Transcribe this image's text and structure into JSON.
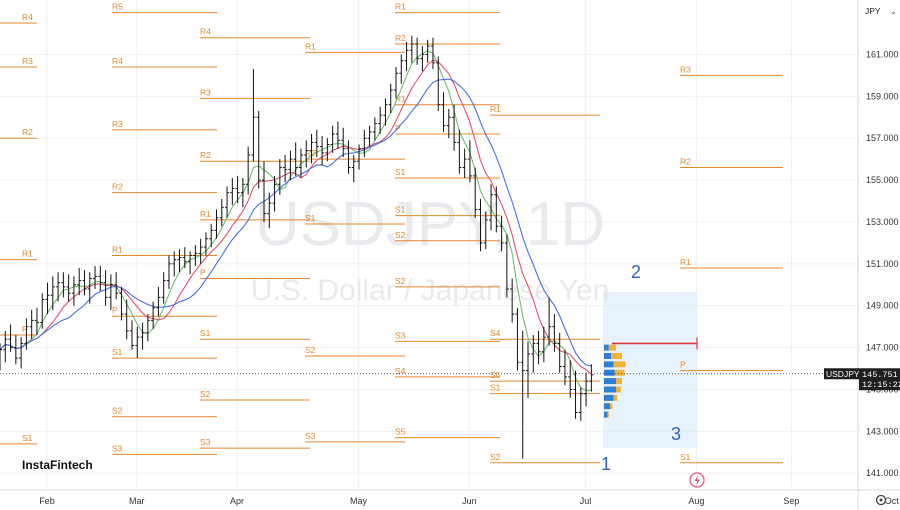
{
  "chart_data": {
    "type": "candlestick",
    "symbol": "USDJPY",
    "watermark_title": "USDJPY, 1D",
    "watermark_subtitle": "U.S. Dollar / Japanese Yen",
    "currency_selector": "JPY",
    "branding": "InstaFintech",
    "x_tick_labels": [
      "Feb",
      "Mar",
      "Apr",
      "May",
      "Jun",
      "Jul",
      "Aug",
      "Sep",
      "Oct"
    ],
    "y_ticks": [
      "161.000",
      "159.000",
      "157.000",
      "155.000",
      "153.000",
      "151.000",
      "149.000",
      "147.000",
      "145.000",
      "143.000",
      "141.000"
    ],
    "ylim": [
      140.2,
      163.6
    ],
    "current_price": "145.751",
    "countdown": "12:15:22",
    "colors": {
      "bars": "#111111",
      "pivot_levels": "#e0882a",
      "ma_fast": "#6bbf6b",
      "ma_mid": "#e0506e",
      "ma_slow": "#4a6fe0",
      "horizontal_line": "#d93a3a",
      "wave_labels": "#2f62c8",
      "volume_profile_buy": "#2f7fd6",
      "volume_profile_sell": "#f0b33a",
      "selection_box": "#d6e8fa"
    },
    "pivot_levels": [
      {
        "label": "R4",
        "price": 162.5,
        "period": 0
      },
      {
        "label": "R3",
        "price": 160.4,
        "period": 0
      },
      {
        "label": "R2",
        "price": 157.0,
        "period": 0
      },
      {
        "label": "R1",
        "price": 151.2,
        "period": 0
      },
      {
        "label": "P",
        "price": 147.6,
        "period": 0
      },
      {
        "label": "S1",
        "price": 142.4,
        "period": 0
      },
      {
        "label": "R5",
        "price": 163.0,
        "period": 1
      },
      {
        "label": "R4",
        "price": 160.4,
        "period": 1
      },
      {
        "label": "R3",
        "price": 157.4,
        "period": 1
      },
      {
        "label": "R2",
        "price": 154.4,
        "period": 1
      },
      {
        "label": "R1",
        "price": 151.4,
        "period": 1
      },
      {
        "label": "P",
        "price": 148.5,
        "period": 1
      },
      {
        "label": "S1",
        "price": 146.5,
        "period": 1
      },
      {
        "label": "S2",
        "price": 143.7,
        "period": 1
      },
      {
        "label": "S3",
        "price": 141.9,
        "period": 1
      },
      {
        "label": "R4",
        "price": 161.8,
        "period": 2
      },
      {
        "label": "R3",
        "price": 158.9,
        "period": 2
      },
      {
        "label": "R2",
        "price": 155.9,
        "period": 2
      },
      {
        "label": "R1",
        "price": 153.1,
        "period": 2
      },
      {
        "label": "P",
        "price": 150.3,
        "period": 2
      },
      {
        "label": "S1",
        "price": 147.4,
        "period": 2
      },
      {
        "label": "S2",
        "price": 144.5,
        "period": 2
      },
      {
        "label": "S3",
        "price": 142.2,
        "period": 2
      },
      {
        "label": "R1",
        "price": 161.1,
        "period": 3
      },
      {
        "label": "R2",
        "price": 156.0,
        "period": 3
      },
      {
        "label": "S1",
        "price": 152.9,
        "period": 3
      },
      {
        "label": "S2",
        "price": 146.6,
        "period": 3
      },
      {
        "label": "S3",
        "price": 142.5,
        "period": 3
      },
      {
        "label": "R1",
        "price": 163.0,
        "period": 4
      },
      {
        "label": "R2",
        "price": 161.5,
        "period": 4
      },
      {
        "label": "R1",
        "price": 158.6,
        "period": 4
      },
      {
        "label": "P",
        "price": 157.2,
        "period": 4
      },
      {
        "label": "S1",
        "price": 155.1,
        "period": 4
      },
      {
        "label": "S1",
        "price": 153.3,
        "period": 4
      },
      {
        "label": "S2",
        "price": 152.1,
        "period": 4
      },
      {
        "label": "S2",
        "price": 149.9,
        "period": 4
      },
      {
        "label": "S3",
        "price": 147.3,
        "period": 4
      },
      {
        "label": "S4",
        "price": 145.6,
        "period": 4
      },
      {
        "label": "S5",
        "price": 142.7,
        "period": 4
      },
      {
        "label": "R1",
        "price": 158.1,
        "period": 5
      },
      {
        "label": "S4",
        "price": 147.4,
        "period": 5
      },
      {
        "label": "S5",
        "price": 145.4,
        "period": 5
      },
      {
        "label": "S1",
        "price": 144.8,
        "period": 5
      },
      {
        "label": "S2",
        "price": 141.5,
        "period": 5
      },
      {
        "label": "R3",
        "price": 160.0,
        "period": 6
      },
      {
        "label": "R2",
        "price": 155.6,
        "period": 6
      },
      {
        "label": "R1",
        "price": 150.8,
        "period": 6
      },
      {
        "label": "P",
        "price": 145.9,
        "period": 6
      },
      {
        "label": "S1",
        "price": 141.5,
        "period": 6
      }
    ],
    "wave_labels": [
      {
        "label": "1",
        "date_index": 127,
        "price": 140.3
      },
      {
        "label": "2",
        "date_index": 134,
        "price": 149.8
      },
      {
        "label": "3",
        "date_index": 144,
        "price": 142.0
      }
    ],
    "resistance_line_price": 147.2,
    "bars_ohlc": [
      [
        146.5,
        147.2,
        145.9,
        146.9
      ],
      [
        146.9,
        147.8,
        146.3,
        147.4
      ],
      [
        147.4,
        148.1,
        146.8,
        147.0
      ],
      [
        147.0,
        147.6,
        146.2,
        146.5
      ],
      [
        146.5,
        147.5,
        146.0,
        147.2
      ],
      [
        147.2,
        148.4,
        146.9,
        148.0
      ],
      [
        148.0,
        148.8,
        147.4,
        148.3
      ],
      [
        148.3,
        148.9,
        147.6,
        148.2
      ],
      [
        148.2,
        149.6,
        147.9,
        149.3
      ],
      [
        149.3,
        150.1,
        148.6,
        149.5
      ],
      [
        149.5,
        150.4,
        148.8,
        149.9
      ],
      [
        149.9,
        150.6,
        149.2,
        150.1
      ],
      [
        150.1,
        150.6,
        149.4,
        149.9
      ],
      [
        149.9,
        150.5,
        149.2,
        149.6
      ],
      [
        149.6,
        150.4,
        149.0,
        150.0
      ],
      [
        150.0,
        150.8,
        149.5,
        150.2
      ],
      [
        150.2,
        150.7,
        149.5,
        149.8
      ],
      [
        149.8,
        150.6,
        149.1,
        150.3
      ],
      [
        150.3,
        150.9,
        149.8,
        150.4
      ],
      [
        150.4,
        150.9,
        149.7,
        150.1
      ],
      [
        150.1,
        150.7,
        149.0,
        149.4
      ],
      [
        149.4,
        150.5,
        148.8,
        150.0
      ],
      [
        150.0,
        150.6,
        149.3,
        149.6
      ],
      [
        149.6,
        149.9,
        148.3,
        148.6
      ],
      [
        148.6,
        149.3,
        147.4,
        147.8
      ],
      [
        147.8,
        148.3,
        146.9,
        147.1
      ],
      [
        147.1,
        148.0,
        146.5,
        147.5
      ],
      [
        147.5,
        148.2,
        146.9,
        147.7
      ],
      [
        147.7,
        148.6,
        147.3,
        148.3
      ],
      [
        148.3,
        149.2,
        147.9,
        148.9
      ],
      [
        148.9,
        149.9,
        148.5,
        149.4
      ],
      [
        149.4,
        150.6,
        149.1,
        150.2
      ],
      [
        150.2,
        151.4,
        149.8,
        151.0
      ],
      [
        151.0,
        151.6,
        150.4,
        151.2
      ],
      [
        151.2,
        151.7,
        150.6,
        151.3
      ],
      [
        151.3,
        151.8,
        150.8,
        151.1
      ],
      [
        151.1,
        151.6,
        150.5,
        151.4
      ],
      [
        151.4,
        151.9,
        150.9,
        151.5
      ],
      [
        151.5,
        152.2,
        151.0,
        151.8
      ],
      [
        151.8,
        152.5,
        151.4,
        152.2
      ],
      [
        152.2,
        152.9,
        151.8,
        152.6
      ],
      [
        152.6,
        153.6,
        152.2,
        153.2
      ],
      [
        153.2,
        154.1,
        152.8,
        153.7
      ],
      [
        153.7,
        154.7,
        153.2,
        154.4
      ],
      [
        154.4,
        155.1,
        153.8,
        154.6
      ],
      [
        154.6,
        155.2,
        153.9,
        154.4
      ],
      [
        154.4,
        155.1,
        153.7,
        154.8
      ],
      [
        154.8,
        156.6,
        154.3,
        156.2
      ],
      [
        156.2,
        160.3,
        155.9,
        158.0
      ],
      [
        158.0,
        158.3,
        154.6,
        155.0
      ],
      [
        155.0,
        155.9,
        153.0,
        153.4
      ],
      [
        153.4,
        154.4,
        152.7,
        153.9
      ],
      [
        153.9,
        155.2,
        153.5,
        154.8
      ],
      [
        154.8,
        156.0,
        154.3,
        155.6
      ],
      [
        155.6,
        156.2,
        154.9,
        155.5
      ],
      [
        155.5,
        156.4,
        155.0,
        156.0
      ],
      [
        156.0,
        156.8,
        155.2,
        155.6
      ],
      [
        155.6,
        156.5,
        155.1,
        156.2
      ],
      [
        156.2,
        156.9,
        155.6,
        156.4
      ],
      [
        156.4,
        157.2,
        155.8,
        156.8
      ],
      [
        156.8,
        157.4,
        156.1,
        156.6
      ],
      [
        156.6,
        157.1,
        155.7,
        156.3
      ],
      [
        156.3,
        157.0,
        155.9,
        156.7
      ],
      [
        156.7,
        157.6,
        156.3,
        157.2
      ],
      [
        157.2,
        157.8,
        156.5,
        156.9
      ],
      [
        156.9,
        157.5,
        156.1,
        156.5
      ],
      [
        156.5,
        156.9,
        155.3,
        155.6
      ],
      [
        155.6,
        156.2,
        154.9,
        155.9
      ],
      [
        155.9,
        156.7,
        155.5,
        156.5
      ],
      [
        156.5,
        157.4,
        156.1,
        157.0
      ],
      [
        157.0,
        157.6,
        156.6,
        157.3
      ],
      [
        157.3,
        158.0,
        156.9,
        157.7
      ],
      [
        157.7,
        158.5,
        157.2,
        158.1
      ],
      [
        158.1,
        158.9,
        157.6,
        158.6
      ],
      [
        158.6,
        159.6,
        158.2,
        159.3
      ],
      [
        159.3,
        160.4,
        158.9,
        160.1
      ],
      [
        160.1,
        161.0,
        159.6,
        160.7
      ],
      [
        160.7,
        161.6,
        160.2,
        161.2
      ],
      [
        161.2,
        161.9,
        160.6,
        161.5
      ],
      [
        161.5,
        161.8,
        160.5,
        160.8
      ],
      [
        160.8,
        161.4,
        160.2,
        161.0
      ],
      [
        161.0,
        161.7,
        160.6,
        161.4
      ],
      [
        161.4,
        161.8,
        160.3,
        160.6
      ],
      [
        160.6,
        160.9,
        158.3,
        158.6
      ],
      [
        158.6,
        159.2,
        157.3,
        157.6
      ],
      [
        157.6,
        158.4,
        157.0,
        158.0
      ],
      [
        158.0,
        158.6,
        156.4,
        156.8
      ],
      [
        156.8,
        157.4,
        155.3,
        155.6
      ],
      [
        155.6,
        156.5,
        155.1,
        156.0
      ],
      [
        156.0,
        156.9,
        154.9,
        155.2
      ],
      [
        155.2,
        155.6,
        153.2,
        153.6
      ],
      [
        153.6,
        154.1,
        151.6,
        152.0
      ],
      [
        152.0,
        153.5,
        151.7,
        153.1
      ],
      [
        153.1,
        154.8,
        152.6,
        154.3
      ],
      [
        154.3,
        154.7,
        152.5,
        152.8
      ],
      [
        152.8,
        153.3,
        151.6,
        152.0
      ],
      [
        152.0,
        152.4,
        149.4,
        149.8
      ],
      [
        149.8,
        150.3,
        148.2,
        148.6
      ],
      [
        148.6,
        148.9,
        145.9,
        146.3
      ],
      [
        146.3,
        147.8,
        141.7,
        145.9
      ],
      [
        145.9,
        147.3,
        144.6,
        146.7
      ],
      [
        146.7,
        147.6,
        145.8,
        147.2
      ],
      [
        147.2,
        147.8,
        146.2,
        146.8
      ],
      [
        146.8,
        148.0,
        146.3,
        147.5
      ],
      [
        147.5,
        149.4,
        147.1,
        148.0
      ],
      [
        148.0,
        148.6,
        146.8,
        147.2
      ],
      [
        147.2,
        147.7,
        145.8,
        146.1
      ],
      [
        146.1,
        146.9,
        145.2,
        145.6
      ],
      [
        145.6,
        146.4,
        144.6,
        145.0
      ],
      [
        145.0,
        145.9,
        143.6,
        143.9
      ],
      [
        143.9,
        145.1,
        143.5,
        144.8
      ],
      [
        144.8,
        145.8,
        144.2,
        145.4
      ],
      [
        145.4,
        146.2,
        144.9,
        145.7
      ]
    ],
    "volume_profile_rows": [
      {
        "price": 147.0,
        "buy": 4,
        "sell": 6
      },
      {
        "price": 146.6,
        "buy": 6,
        "sell": 9
      },
      {
        "price": 146.2,
        "buy": 8,
        "sell": 10
      },
      {
        "price": 145.8,
        "buy": 9,
        "sell": 8
      },
      {
        "price": 145.4,
        "buy": 10,
        "sell": 5
      },
      {
        "price": 145.0,
        "buy": 10,
        "sell": 4
      },
      {
        "price": 144.6,
        "buy": 8,
        "sell": 3
      },
      {
        "price": 144.2,
        "buy": 5,
        "sell": 2
      },
      {
        "price": 143.8,
        "buy": 3,
        "sell": 1
      }
    ]
  }
}
